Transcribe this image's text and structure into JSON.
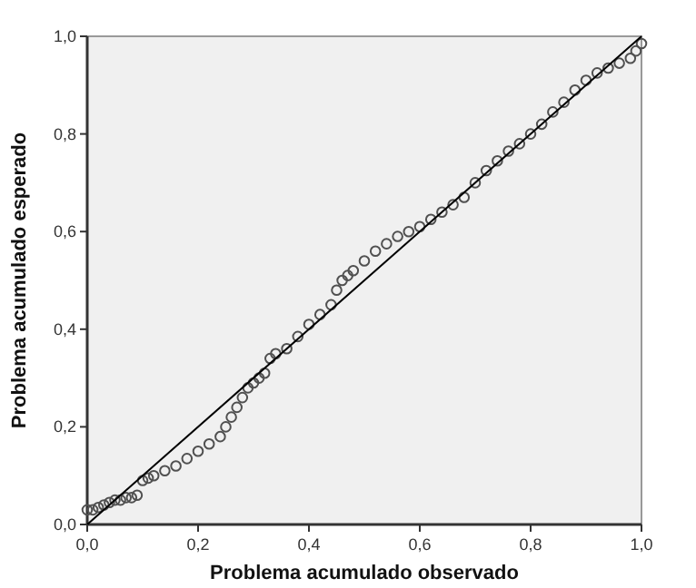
{
  "chart_data": {
    "type": "scatter",
    "xlabel": "Problema acumulado observado",
    "ylabel": "Problema acumulado esperado",
    "xlim": [
      0,
      1
    ],
    "ylim": [
      0,
      1
    ],
    "xticks": [
      {
        "value": 0,
        "label": "0,0"
      },
      {
        "value": 0.2,
        "label": "0,2"
      },
      {
        "value": 0.4,
        "label": "0,4"
      },
      {
        "value": 0.6,
        "label": "0,6"
      },
      {
        "value": 0.8,
        "label": "0,8"
      },
      {
        "value": 1,
        "label": "1,0"
      }
    ],
    "yticks": [
      {
        "value": 0,
        "label": "0,0"
      },
      {
        "value": 0.2,
        "label": "0,2"
      },
      {
        "value": 0.4,
        "label": "0,4"
      },
      {
        "value": 0.6,
        "label": "0,6"
      },
      {
        "value": 0.8,
        "label": "0,8"
      },
      {
        "value": 1,
        "label": "1,0"
      }
    ],
    "grid": false,
    "series": [
      {
        "marker": "circle",
        "color": "#505050",
        "x": [
          0.0,
          0.01,
          0.02,
          0.03,
          0.04,
          0.05,
          0.06,
          0.07,
          0.08,
          0.09,
          0.1,
          0.11,
          0.12,
          0.14,
          0.16,
          0.18,
          0.2,
          0.22,
          0.24,
          0.25,
          0.26,
          0.27,
          0.28,
          0.29,
          0.3,
          0.31,
          0.32,
          0.33,
          0.34,
          0.36,
          0.38,
          0.4,
          0.42,
          0.44,
          0.45,
          0.46,
          0.47,
          0.48,
          0.5,
          0.52,
          0.54,
          0.56,
          0.58,
          0.6,
          0.62,
          0.64,
          0.66,
          0.68,
          0.7,
          0.72,
          0.74,
          0.76,
          0.78,
          0.8,
          0.82,
          0.84,
          0.86,
          0.88,
          0.9,
          0.92,
          0.94,
          0.96,
          0.98,
          0.99,
          1.0
        ],
        "values": [
          0.03,
          0.03,
          0.035,
          0.04,
          0.045,
          0.05,
          0.05,
          0.055,
          0.055,
          0.06,
          0.09,
          0.095,
          0.1,
          0.11,
          0.12,
          0.135,
          0.15,
          0.165,
          0.18,
          0.2,
          0.22,
          0.24,
          0.26,
          0.28,
          0.29,
          0.3,
          0.31,
          0.34,
          0.35,
          0.36,
          0.385,
          0.41,
          0.43,
          0.45,
          0.48,
          0.5,
          0.51,
          0.52,
          0.54,
          0.56,
          0.575,
          0.59,
          0.6,
          0.61,
          0.625,
          0.64,
          0.655,
          0.67,
          0.7,
          0.725,
          0.745,
          0.765,
          0.78,
          0.8,
          0.82,
          0.845,
          0.865,
          0.89,
          0.91,
          0.925,
          0.935,
          0.945,
          0.955,
          0.97,
          0.985
        ]
      },
      {
        "type": "line",
        "color": "#000000",
        "x": [
          0,
          1
        ],
        "values": [
          0,
          1
        ]
      }
    ]
  }
}
